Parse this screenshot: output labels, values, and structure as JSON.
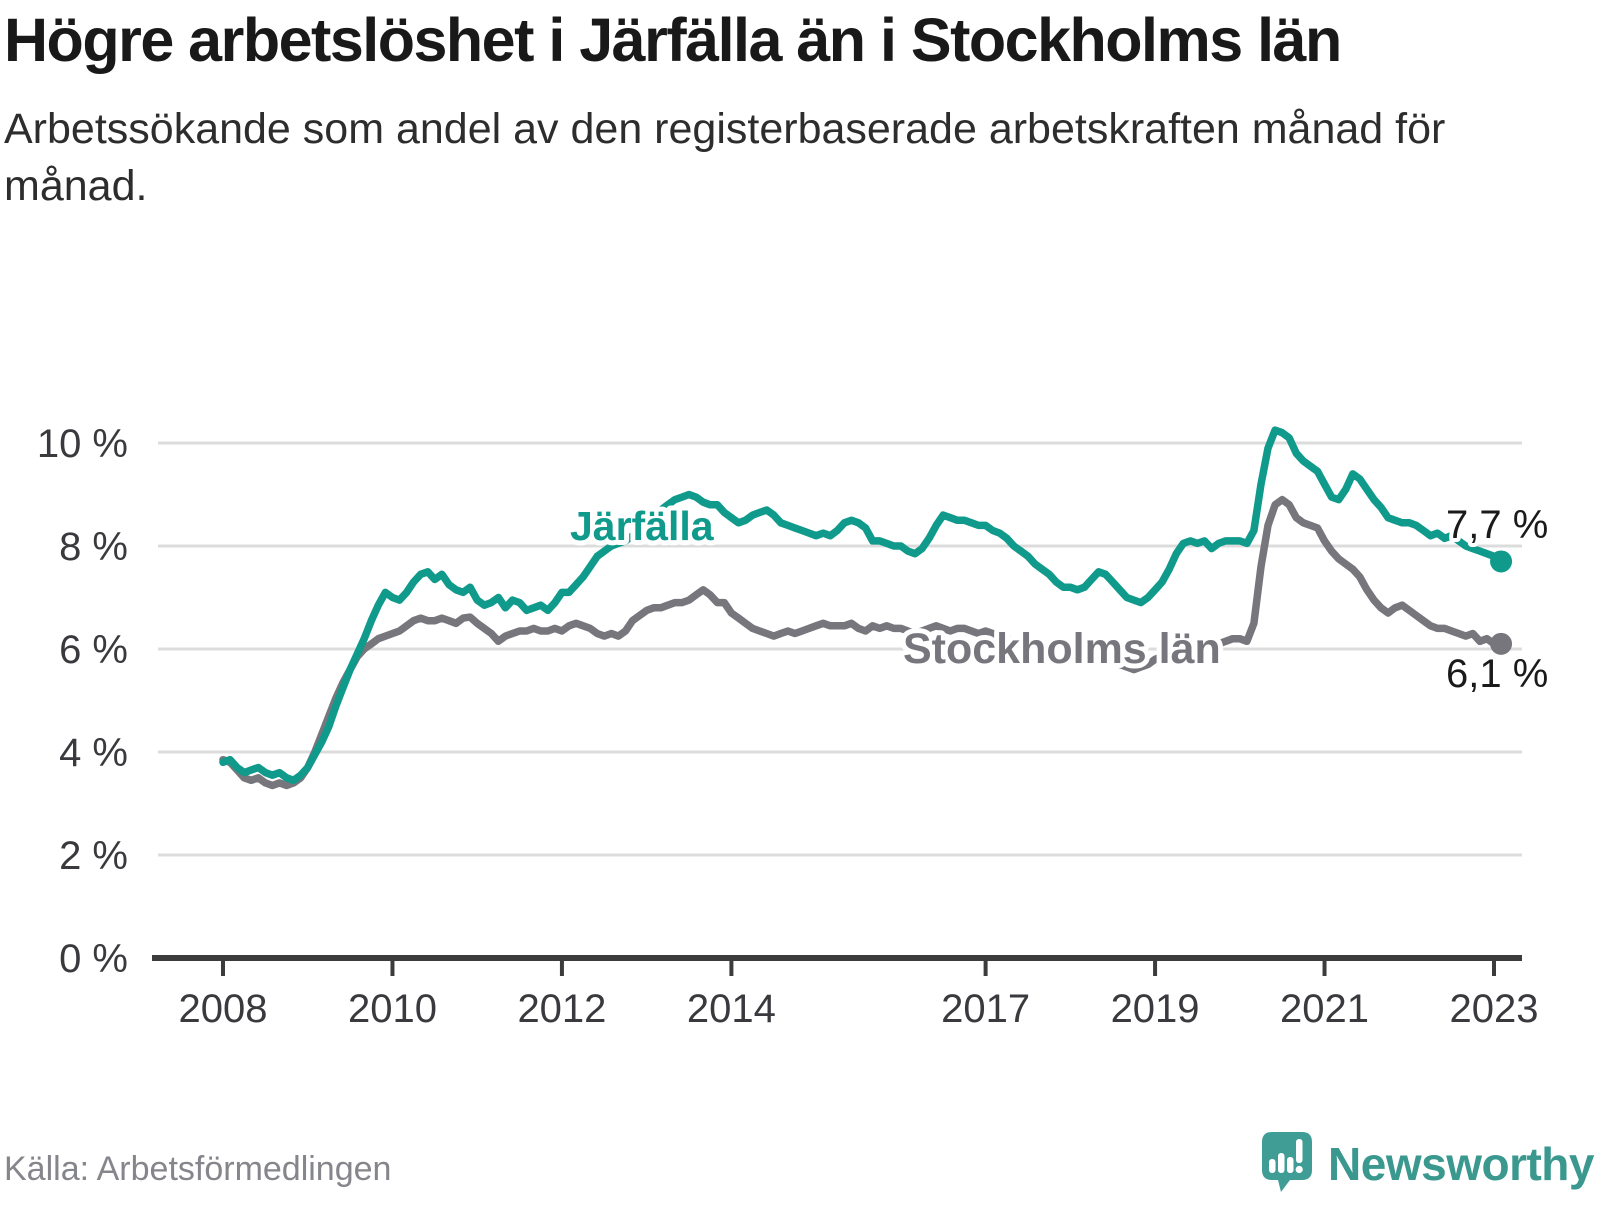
{
  "header": {
    "title": "Högre arbetslöshet i Järfälla än i Stockholms län",
    "subtitle": "Arbetssökande som andel av den registerbaserade arbetskraften månad för månad."
  },
  "footer": {
    "source": "Källa: Arbetsförmedlingen",
    "brand": "Newsworthy"
  },
  "colors": {
    "jarfalla": "#0f9a8c",
    "stockholm": "#77767d",
    "grid": "#dcdcdc",
    "axis": "#3c3c3c",
    "tick_text": "#3a3a3e",
    "end_label_text": "#1a1a1a",
    "logo": "#3f9d96"
  },
  "chart_data": {
    "type": "line",
    "unit": "%",
    "start_month": "2008-01",
    "end_month": "2023-02",
    "x_ticks": [
      2008,
      2010,
      2012,
      2014,
      2017,
      2019,
      2021,
      2023
    ],
    "y_ticks": [
      0,
      2,
      4,
      6,
      8,
      10
    ],
    "y_tick_suffix": " %",
    "ylim": [
      0,
      10.6
    ],
    "grid": true,
    "legend_position": "inline-labels",
    "series": [
      {
        "id": "jarfalla",
        "name": "Järfälla",
        "end_label": "7,7 %",
        "last_value": 7.7,
        "values": [
          3.8,
          3.85,
          3.7,
          3.6,
          3.65,
          3.7,
          3.6,
          3.55,
          3.6,
          3.5,
          3.45,
          3.55,
          3.7,
          3.95,
          4.2,
          4.5,
          4.9,
          5.25,
          5.6,
          5.9,
          6.2,
          6.55,
          6.85,
          7.1,
          7.0,
          6.95,
          7.1,
          7.3,
          7.45,
          7.5,
          7.35,
          7.45,
          7.25,
          7.15,
          7.1,
          7.2,
          6.95,
          6.85,
          6.9,
          7.0,
          6.8,
          6.95,
          6.9,
          6.75,
          6.8,
          6.85,
          6.75,
          6.9,
          7.1,
          7.1,
          7.25,
          7.4,
          7.6,
          7.8,
          7.9,
          8.0,
          8.05,
          8.1,
          8.2,
          8.3,
          8.45,
          8.6,
          8.7,
          8.8,
          8.9,
          8.95,
          9.0,
          8.95,
          8.85,
          8.8,
          8.8,
          8.65,
          8.55,
          8.45,
          8.5,
          8.6,
          8.65,
          8.7,
          8.6,
          8.45,
          8.4,
          8.35,
          8.3,
          8.25,
          8.2,
          8.25,
          8.2,
          8.3,
          8.45,
          8.5,
          8.45,
          8.35,
          8.1,
          8.1,
          8.05,
          8.0,
          8.0,
          7.9,
          7.85,
          7.95,
          8.15,
          8.4,
          8.6,
          8.55,
          8.5,
          8.5,
          8.45,
          8.4,
          8.4,
          8.3,
          8.25,
          8.15,
          8.0,
          7.9,
          7.8,
          7.65,
          7.55,
          7.45,
          7.3,
          7.2,
          7.2,
          7.15,
          7.2,
          7.35,
          7.5,
          7.45,
          7.3,
          7.15,
          7.0,
          6.95,
          6.9,
          7.0,
          7.15,
          7.3,
          7.55,
          7.85,
          8.05,
          8.1,
          8.05,
          8.1,
          7.95,
          8.05,
          8.1,
          8.1,
          8.1,
          8.05,
          8.3,
          9.2,
          9.9,
          10.25,
          10.2,
          10.1,
          9.8,
          9.65,
          9.55,
          9.45,
          9.2,
          8.95,
          8.9,
          9.1,
          9.4,
          9.3,
          9.1,
          8.9,
          8.75,
          8.55,
          8.5,
          8.45,
          8.45,
          8.4,
          8.3,
          8.2,
          8.25,
          8.15,
          8.2,
          8.1,
          8.0,
          7.95,
          7.9,
          7.85,
          7.8,
          7.7
        ]
      },
      {
        "id": "stockholms-lan",
        "name": "Stockholms län",
        "end_label": "6,1 %",
        "last_value": 6.1,
        "values": [
          3.85,
          3.8,
          3.65,
          3.5,
          3.45,
          3.5,
          3.4,
          3.35,
          3.4,
          3.35,
          3.4,
          3.5,
          3.7,
          4.0,
          4.35,
          4.7,
          5.05,
          5.35,
          5.6,
          5.85,
          6.0,
          6.1,
          6.2,
          6.25,
          6.3,
          6.35,
          6.45,
          6.55,
          6.6,
          6.55,
          6.55,
          6.6,
          6.55,
          6.5,
          6.6,
          6.62,
          6.5,
          6.4,
          6.3,
          6.15,
          6.25,
          6.3,
          6.35,
          6.35,
          6.4,
          6.35,
          6.35,
          6.4,
          6.35,
          6.45,
          6.5,
          6.45,
          6.4,
          6.3,
          6.25,
          6.3,
          6.25,
          6.35,
          6.55,
          6.65,
          6.75,
          6.8,
          6.8,
          6.85,
          6.9,
          6.9,
          6.95,
          7.05,
          7.15,
          7.05,
          6.9,
          6.9,
          6.7,
          6.6,
          6.5,
          6.4,
          6.35,
          6.3,
          6.25,
          6.3,
          6.35,
          6.3,
          6.35,
          6.4,
          6.45,
          6.5,
          6.45,
          6.45,
          6.45,
          6.5,
          6.4,
          6.35,
          6.45,
          6.4,
          6.45,
          6.4,
          6.4,
          6.35,
          6.3,
          6.35,
          6.4,
          6.45,
          6.4,
          6.35,
          6.4,
          6.4,
          6.35,
          6.3,
          6.35,
          6.3,
          6.25,
          6.2,
          6.15,
          6.2,
          6.15,
          6.1,
          6.05,
          6.1,
          6.1,
          6.05,
          6.05,
          6.0,
          5.95,
          5.9,
          5.85,
          5.9,
          5.8,
          5.7,
          5.65,
          5.6,
          5.65,
          5.7,
          5.8,
          5.85,
          5.9,
          5.95,
          6.0,
          6.05,
          6.05,
          6.1,
          6.05,
          6.1,
          6.15,
          6.2,
          6.2,
          6.15,
          6.5,
          7.6,
          8.4,
          8.8,
          8.9,
          8.8,
          8.55,
          8.45,
          8.4,
          8.35,
          8.1,
          7.9,
          7.75,
          7.65,
          7.55,
          7.4,
          7.15,
          6.95,
          6.8,
          6.7,
          6.8,
          6.85,
          6.75,
          6.65,
          6.55,
          6.45,
          6.4,
          6.4,
          6.35,
          6.3,
          6.25,
          6.3,
          6.15,
          6.2,
          6.1,
          6.1
        ]
      }
    ]
  }
}
